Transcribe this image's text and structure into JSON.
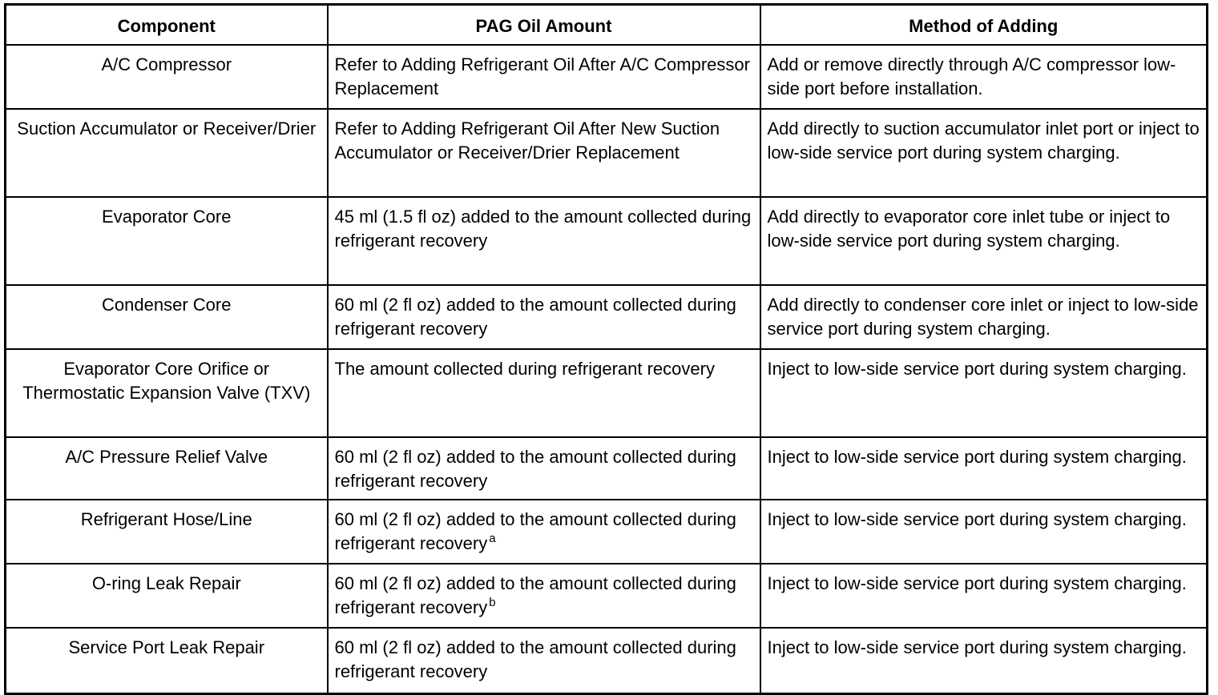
{
  "headers": [
    "Component",
    "PAG Oil Amount",
    "Method of Adding"
  ],
  "rows": [
    {
      "component": "A/C Compressor",
      "amount": "Refer to Adding Refrigerant Oil After A/C Compressor Replacement",
      "note": "",
      "method": "Add or remove directly through A/C compressor low-side port before installation."
    },
    {
      "component": "Suction Accumulator or Receiver/Drier",
      "amount": "Refer to Adding Refrigerant Oil After New Suction Accumulator or Receiver/Drier Replacement",
      "note": "",
      "method": "Add directly to suction accumulator inlet port or inject to low-side service port during system charging."
    },
    {
      "component": "Evaporator Core",
      "amount": "45 ml (1.5 fl oz) added to the amount collected during refrigerant recovery",
      "note": "",
      "method": "Add directly to evaporator core inlet tube or inject to low-side service port during system charging."
    },
    {
      "component": "Condenser Core",
      "amount": "60 ml (2 fl oz) added to the amount collected during refrigerant recovery",
      "note": "",
      "method": "Add directly to condenser core inlet or inject to low-side service port during system charging."
    },
    {
      "component": "Evaporator Core Orifice or Thermostatic Expansion Valve (TXV)",
      "amount": "The amount collected during refrigerant recovery",
      "note": "",
      "method": "Inject to low-side service port during system charging."
    },
    {
      "component": "A/C Pressure Relief Valve",
      "amount": "60 ml (2 fl oz) added to the amount collected during refrigerant recovery",
      "note": "",
      "method": "Inject to low-side service port during system charging."
    },
    {
      "component": "Refrigerant Hose/Line",
      "amount": "60 ml (2 fl oz) added to the amount collected during refrigerant recovery",
      "note": "a",
      "method": "Inject to low-side service port during system charging."
    },
    {
      "component": "O-ring Leak Repair",
      "amount": "60 ml (2 fl oz) added to the amount collected during refrigerant recovery",
      "note": "b",
      "method": "Inject to low-side service port during system charging."
    },
    {
      "component": "Service Port Leak Repair",
      "amount": "60 ml (2 fl oz) added to the amount collected during refrigerant recovery",
      "note": "",
      "method": "Inject to low-side service port during system charging."
    }
  ]
}
